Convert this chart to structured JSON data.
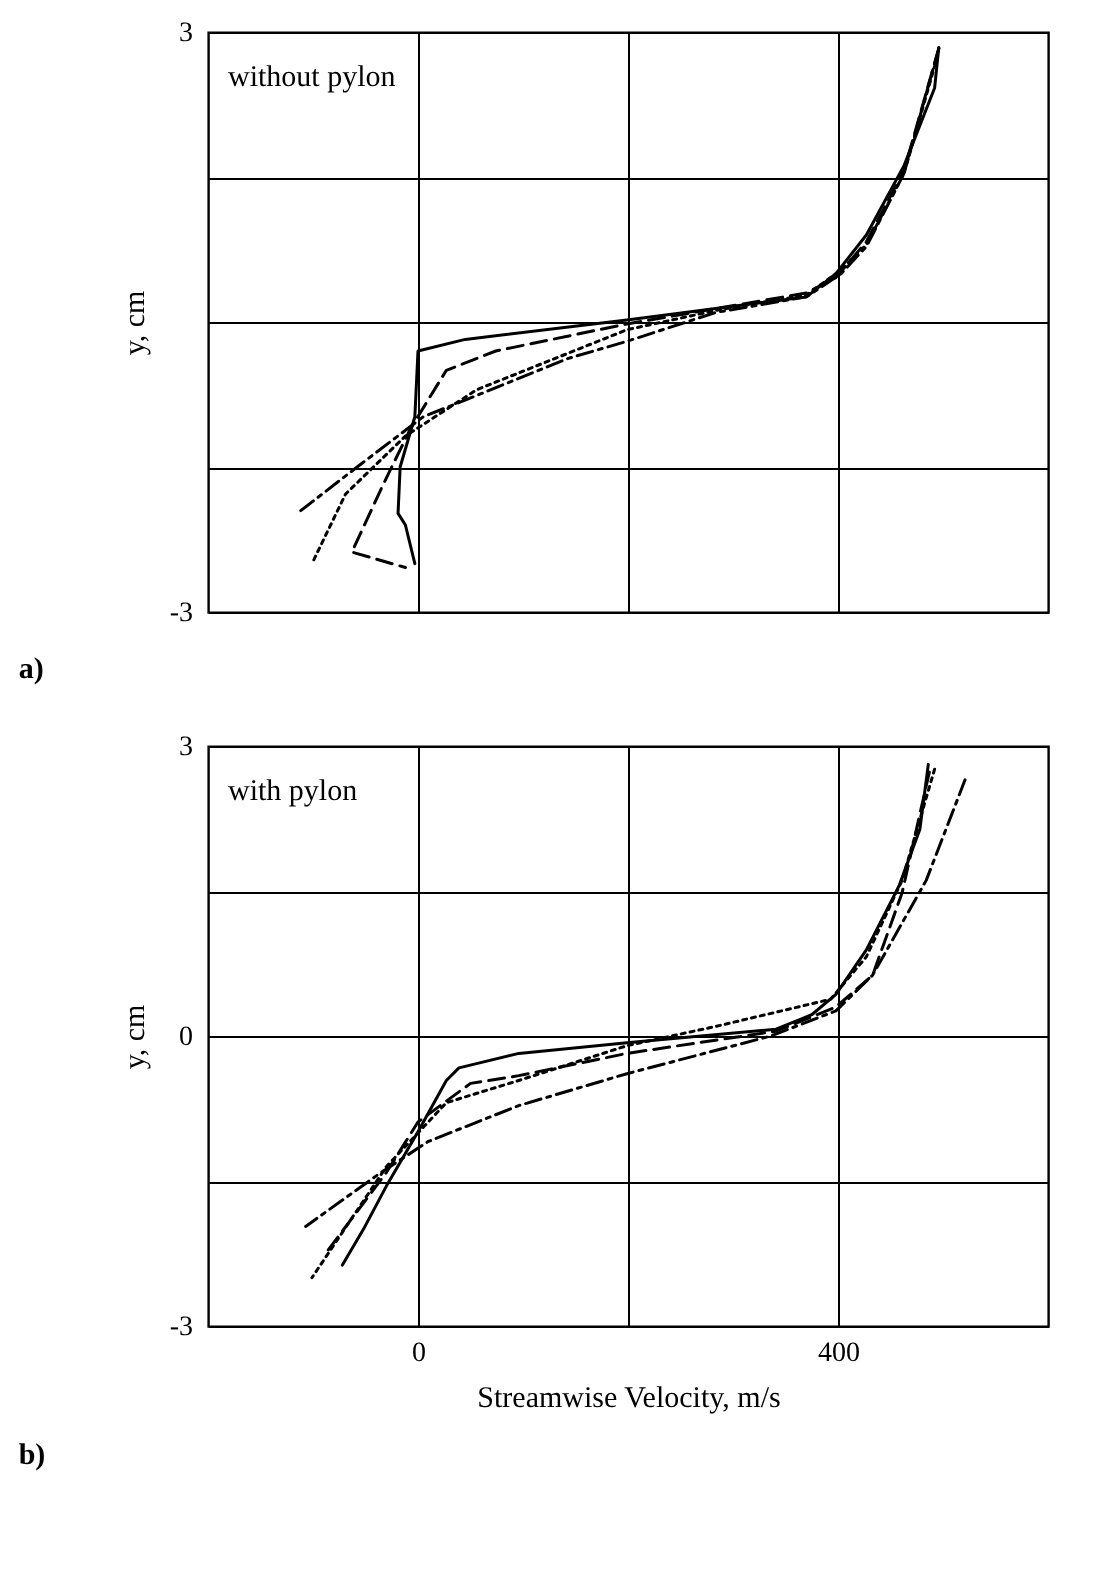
{
  "chart_data": [
    {
      "type": "line",
      "ylabel": "y, cm",
      "annotations": [
        "without pylon",
        "a)"
      ],
      "xlim": [
        -200,
        600
      ],
      "ylim": [
        -3,
        3
      ],
      "xticks": [
        {
          "value": 0,
          "label": null
        },
        {
          "value": 200,
          "label": null
        },
        {
          "value": 400,
          "label": null
        }
      ],
      "yticks": [
        -3,
        {
          "value": -1.5,
          "label": null
        },
        {
          "value": 0,
          "label": null
        },
        {
          "value": 1.5,
          "label": null
        },
        3
      ],
      "grid": true,
      "tick_labels": "y",
      "series": [
        {
          "color": "#000000",
          "line_style": "solid",
          "x": [
            496,
            492,
            463,
            427,
            398,
            370,
            199,
            45,
            0,
            -3,
            -17,
            -19,
            -12,
            -3
          ],
          "values": [
            2.84,
            2.42,
            1.62,
            0.9,
            0.5,
            0.26,
            0.02,
            -0.18,
            -0.3,
            -0.98,
            -1.5,
            -1.98,
            -2.1,
            -2.5
          ]
        },
        {
          "color": "#000000",
          "line_style": "dashed",
          "x": [
            496,
            463,
            427,
            398,
            370,
            199,
            74,
            27,
            -7,
            -34,
            -63,
            -12
          ],
          "values": [
            2.83,
            1.57,
            0.83,
            0.46,
            0.3,
            -0.02,
            -0.3,
            -0.5,
            -1.1,
            -1.7,
            -2.38,
            -2.54
          ]
        },
        {
          "color": "#000000",
          "line_style": "dotted",
          "x": [
            495,
            463,
            427,
            403,
            370,
            284,
            199,
            56,
            -12,
            -69,
            -101
          ],
          "values": [
            2.76,
            1.54,
            0.8,
            0.54,
            0.28,
            0.12,
            -0.08,
            -0.7,
            -1.18,
            -1.78,
            -2.5
          ]
        },
        {
          "color": "#000000",
          "line_style": "dashdot",
          "x": [
            496,
            463,
            427,
            403,
            370,
            284,
            199,
            142,
            56,
            5,
            -58,
            -115
          ],
          "values": [
            2.83,
            1.54,
            0.78,
            0.5,
            0.26,
            0.1,
            -0.2,
            -0.38,
            -0.76,
            -0.98,
            -1.5,
            -1.98
          ]
        }
      ]
    },
    {
      "type": "line",
      "xlabel": "Streamwise Velocity, m/s",
      "ylabel": "y, cm",
      "annotations": [
        "with pylon",
        "b)"
      ],
      "xlim": [
        -200,
        600
      ],
      "ylim": [
        -3,
        3
      ],
      "xticks": [
        0,
        {
          "value": 200,
          "label": null
        },
        400
      ],
      "yticks": [
        -3,
        {
          "value": -1.5,
          "label": null
        },
        0,
        {
          "value": 1.5,
          "label": null
        },
        3
      ],
      "grid": true,
      "series": [
        {
          "color": "#000000",
          "line_style": "solid",
          "x": [
            486,
            478,
            458,
            427,
            398,
            375,
            341,
            199,
            96,
            39,
            27,
            0,
            -30,
            -52,
            -72
          ],
          "values": [
            2.81,
            2.14,
            1.55,
            0.89,
            0.43,
            0.22,
            0.07,
            -0.07,
            -0.18,
            -0.33,
            -0.46,
            -0.99,
            -1.55,
            -2.0,
            -2.37
          ]
        },
        {
          "color": "#000000",
          "line_style": "dashed",
          "x": [
            487,
            461,
            433,
            398,
            341,
            199,
            96,
            50,
            0,
            -30,
            -88
          ],
          "values": [
            2.73,
            1.48,
            0.63,
            0.3,
            0.05,
            -0.18,
            -0.41,
            -0.49,
            -0.89,
            -1.41,
            -2.25
          ]
        },
        {
          "color": "#000000",
          "line_style": "dotted",
          "x": [
            492,
            461,
            427,
            393,
            284,
            199,
            96,
            27,
            -30,
            -101
          ],
          "values": [
            2.76,
            1.61,
            0.82,
            0.38,
            0.1,
            -0.1,
            -0.46,
            -0.69,
            -1.35,
            -2.5
          ]
        },
        {
          "color": "#000000",
          "line_style": "dashdot",
          "x": [
            521,
            484,
            433,
            398,
            336,
            199,
            96,
            10,
            -35,
            -107
          ],
          "values": [
            2.65,
            1.61,
            0.63,
            0.26,
            0,
            -0.39,
            -0.72,
            -1.09,
            -1.41,
            -1.97
          ]
        }
      ]
    }
  ]
}
